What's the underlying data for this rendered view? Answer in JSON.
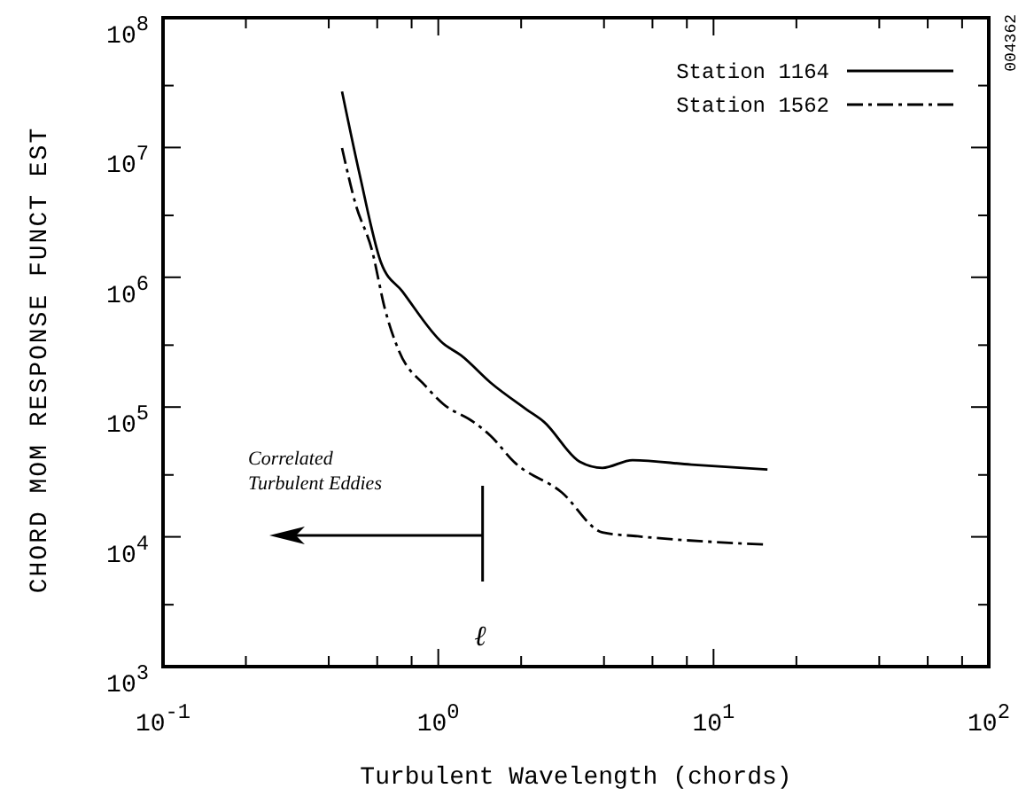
{
  "chart_data": {
    "type": "line",
    "xlabel": "Turbulent Wavelength (chords)",
    "ylabel": "CHORD MOM RESPONSE FUNCT EST",
    "log": "xy",
    "grid": false,
    "legend": "top right",
    "marker": "none",
    "xlim": [
      0.1,
      100
    ],
    "ylim": [
      1000,
      100000000
    ],
    "xticks": [
      {
        "value": 0.1,
        "label": "10$^{-1}$"
      },
      {
        "value": 0.2,
        "label": null
      },
      {
        "value": 0.4,
        "label": null
      },
      {
        "value": 0.6,
        "label": null
      },
      {
        "value": 0.8,
        "label": null
      },
      {
        "value": 1,
        "label": "10$^{0}$"
      },
      {
        "value": 2,
        "label": null
      },
      {
        "value": 4,
        "label": null
      },
      {
        "value": 6,
        "label": null
      },
      {
        "value": 8,
        "label": null
      },
      {
        "value": 10,
        "label": "10$^{1}$"
      },
      {
        "value": 20,
        "label": null
      },
      {
        "value": 40,
        "label": null
      },
      {
        "value": 60,
        "label": null
      },
      {
        "value": 80,
        "label": null
      },
      {
        "value": 100,
        "label": "10$^{2}$"
      }
    ],
    "yticks": [
      {
        "value": 1000,
        "label": "10$^{3}$"
      },
      {
        "value": 3000,
        "label": null
      },
      {
        "value": 10000,
        "label": "10$^{4}$"
      },
      {
        "value": 30000,
        "label": null
      },
      {
        "value": 100000,
        "label": "10$^{5}$"
      },
      {
        "value": 300000,
        "label": null
      },
      {
        "value": 1000000,
        "label": "10$^{6}$"
      },
      {
        "value": 3000000,
        "label": null
      },
      {
        "value": 10000000,
        "label": "10$^{7}$"
      },
      {
        "value": 30000000,
        "label": null
      },
      {
        "value": 100000000,
        "label": "10$^{8}$"
      }
    ],
    "series": [
      {
        "name": "Station 1164",
        "color": "#000000",
        "line_style": "solid",
        "x": [
          0.447,
          0.518,
          0.62,
          0.74,
          1.04,
          1.21,
          1.55,
          2.09,
          2.42,
          3.26,
          3.95,
          5.08,
          8.3,
          15.7
        ],
        "values": [
          27000000,
          6200000,
          1290000,
          780000,
          310000,
          250000,
          154000,
          96000,
          77000,
          38000,
          34000,
          39000,
          36000,
          33000
        ]
      },
      {
        "name": "Station 1562",
        "color": "#000000",
        "line_style": "dashdot",
        "x": [
          0.447,
          0.5,
          0.575,
          0.64,
          0.72,
          0.9,
          1.04,
          1.34,
          1.55,
          1.88,
          2.81,
          3.95,
          5.3,
          15.7
        ],
        "values": [
          9900000,
          3700000,
          1600000,
          570000,
          270000,
          145000,
          106000,
          77000,
          60000,
          38000,
          22000,
          10800,
          10100,
          8700
        ]
      }
    ],
    "annotations": [
      "Correlated\nTurbulent Eddies",
      "ℓ",
      "004362"
    ]
  }
}
